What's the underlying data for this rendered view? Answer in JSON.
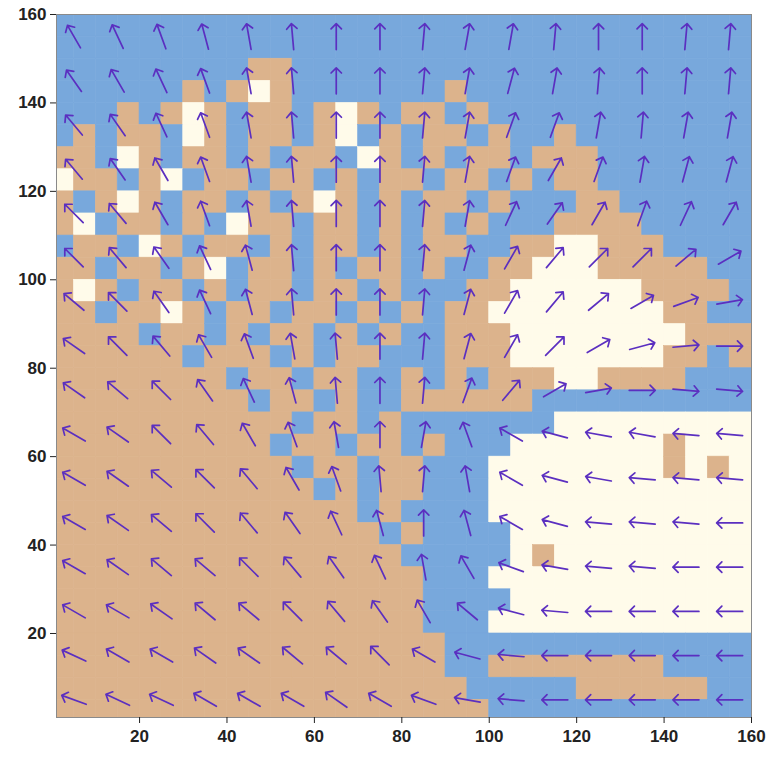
{
  "chart_data": {
    "type": "vector_field",
    "xlim": [
      1,
      160
    ],
    "ylim": [
      1,
      160
    ],
    "xticks": [
      20,
      40,
      60,
      80,
      100,
      120,
      140,
      160
    ],
    "yticks": [
      20,
      40,
      60,
      80,
      100,
      120,
      140,
      160
    ],
    "cells": {
      "x_start": 0,
      "y_top": 160,
      "size": 5,
      "colors": [
        "#78a8dc",
        "#dcb38c",
        "#fffbea"
      ],
      "rows": [
        [
          0,
          0,
          0,
          0,
          0,
          0,
          0,
          0,
          0,
          0,
          0,
          0,
          0,
          0,
          0,
          0,
          0,
          0,
          0,
          0,
          0,
          0,
          0,
          0,
          0,
          0,
          0,
          0,
          0,
          0,
          0,
          0
        ],
        [
          0,
          0,
          0,
          0,
          0,
          0,
          0,
          0,
          0,
          0,
          0,
          0,
          0,
          0,
          0,
          0,
          0,
          0,
          0,
          0,
          0,
          0,
          0,
          0,
          0,
          0,
          0,
          0,
          0,
          0,
          0,
          0
        ],
        [
          0,
          0,
          0,
          0,
          0,
          0,
          0,
          0,
          0,
          1,
          1,
          0,
          0,
          0,
          0,
          0,
          0,
          0,
          0,
          0,
          0,
          0,
          0,
          0,
          0,
          0,
          0,
          0,
          0,
          0,
          0,
          0
        ],
        [
          0,
          0,
          0,
          0,
          0,
          0,
          1,
          0,
          1,
          2,
          1,
          0,
          0,
          0,
          0,
          0,
          0,
          0,
          1,
          0,
          0,
          0,
          0,
          0,
          0,
          0,
          0,
          0,
          0,
          0,
          0,
          0
        ],
        [
          0,
          0,
          0,
          1,
          0,
          1,
          2,
          1,
          0,
          1,
          1,
          0,
          1,
          2,
          1,
          0,
          1,
          1,
          0,
          1,
          0,
          0,
          0,
          0,
          0,
          0,
          0,
          0,
          0,
          0,
          0,
          0
        ],
        [
          0,
          1,
          0,
          1,
          1,
          0,
          2,
          1,
          0,
          1,
          1,
          0,
          1,
          2,
          0,
          1,
          0,
          1,
          1,
          0,
          1,
          0,
          0,
          1,
          0,
          0,
          0,
          0,
          0,
          0,
          0,
          0
        ],
        [
          1,
          1,
          0,
          2,
          1,
          0,
          1,
          1,
          0,
          1,
          0,
          1,
          1,
          0,
          2,
          1,
          0,
          1,
          0,
          1,
          1,
          0,
          1,
          1,
          1,
          0,
          0,
          0,
          0,
          0,
          0,
          0
        ],
        [
          2,
          1,
          1,
          0,
          1,
          2,
          0,
          1,
          1,
          0,
          1,
          1,
          0,
          1,
          0,
          1,
          1,
          0,
          1,
          1,
          0,
          1,
          0,
          1,
          1,
          0,
          0,
          0,
          0,
          0,
          0,
          0
        ],
        [
          1,
          0,
          1,
          2,
          1,
          0,
          1,
          1,
          0,
          1,
          0,
          1,
          2,
          1,
          0,
          1,
          0,
          1,
          1,
          0,
          1,
          0,
          0,
          0,
          1,
          1,
          0,
          0,
          0,
          0,
          0,
          0
        ],
        [
          1,
          2,
          0,
          1,
          1,
          0,
          1,
          0,
          2,
          1,
          1,
          0,
          1,
          1,
          0,
          1,
          0,
          1,
          0,
          1,
          0,
          0,
          0,
          1,
          1,
          1,
          1,
          0,
          0,
          0,
          0,
          0
        ],
        [
          0,
          1,
          1,
          0,
          2,
          1,
          0,
          1,
          1,
          0,
          1,
          0,
          1,
          1,
          0,
          1,
          0,
          1,
          1,
          0,
          0,
          1,
          1,
          2,
          2,
          1,
          1,
          1,
          0,
          0,
          0,
          0
        ],
        [
          1,
          1,
          0,
          1,
          1,
          0,
          1,
          2,
          0,
          1,
          1,
          0,
          1,
          0,
          1,
          1,
          0,
          1,
          0,
          0,
          1,
          1,
          2,
          2,
          2,
          1,
          1,
          1,
          1,
          1,
          0,
          0
        ],
        [
          1,
          2,
          1,
          0,
          1,
          1,
          0,
          1,
          0,
          1,
          1,
          0,
          1,
          1,
          0,
          1,
          0,
          0,
          0,
          1,
          1,
          2,
          2,
          2,
          2,
          2,
          2,
          1,
          1,
          1,
          1,
          0
        ],
        [
          1,
          1,
          0,
          1,
          1,
          2,
          1,
          0,
          1,
          1,
          0,
          1,
          1,
          0,
          1,
          0,
          1,
          0,
          1,
          1,
          2,
          2,
          2,
          2,
          2,
          2,
          2,
          2,
          1,
          1,
          0,
          0
        ],
        [
          1,
          1,
          1,
          1,
          0,
          1,
          1,
          0,
          1,
          0,
          1,
          1,
          0,
          1,
          0,
          1,
          0,
          0,
          1,
          1,
          1,
          2,
          2,
          2,
          2,
          2,
          2,
          2,
          2,
          1,
          1,
          1
        ],
        [
          1,
          1,
          1,
          1,
          1,
          1,
          0,
          1,
          1,
          1,
          0,
          1,
          0,
          1,
          1,
          0,
          0,
          0,
          1,
          1,
          1,
          2,
          2,
          2,
          2,
          2,
          2,
          2,
          1,
          1,
          0,
          1
        ],
        [
          1,
          1,
          1,
          1,
          1,
          1,
          1,
          1,
          0,
          1,
          1,
          0,
          1,
          1,
          0,
          0,
          1,
          0,
          1,
          0,
          1,
          1,
          1,
          2,
          2,
          1,
          1,
          1,
          1,
          0,
          0,
          0
        ],
        [
          1,
          1,
          1,
          1,
          1,
          1,
          1,
          1,
          1,
          0,
          1,
          1,
          0,
          1,
          0,
          0,
          1,
          1,
          1,
          1,
          1,
          1,
          0,
          0,
          0,
          0,
          0,
          0,
          0,
          0,
          0,
          0
        ],
        [
          1,
          1,
          1,
          1,
          1,
          1,
          1,
          1,
          1,
          1,
          1,
          0,
          1,
          1,
          0,
          1,
          0,
          0,
          0,
          0,
          0,
          0,
          0,
          2,
          2,
          2,
          2,
          2,
          2,
          2,
          2,
          2
        ],
        [
          1,
          1,
          1,
          1,
          1,
          1,
          1,
          1,
          1,
          1,
          0,
          1,
          1,
          0,
          1,
          1,
          0,
          1,
          0,
          0,
          0,
          2,
          2,
          2,
          2,
          2,
          2,
          2,
          1,
          2,
          2,
          2
        ],
        [
          1,
          1,
          1,
          1,
          1,
          1,
          1,
          1,
          1,
          1,
          1,
          0,
          1,
          1,
          0,
          1,
          1,
          0,
          0,
          0,
          2,
          2,
          2,
          2,
          2,
          2,
          2,
          2,
          1,
          2,
          1,
          2
        ],
        [
          1,
          1,
          1,
          1,
          1,
          1,
          1,
          1,
          1,
          1,
          1,
          1,
          0,
          1,
          0,
          1,
          1,
          0,
          0,
          0,
          2,
          2,
          2,
          2,
          2,
          2,
          2,
          2,
          2,
          2,
          2,
          2
        ],
        [
          1,
          1,
          1,
          1,
          1,
          1,
          1,
          1,
          1,
          1,
          1,
          1,
          1,
          1,
          0,
          1,
          0,
          0,
          0,
          0,
          2,
          2,
          2,
          2,
          2,
          2,
          2,
          2,
          2,
          2,
          2,
          2
        ],
        [
          1,
          1,
          1,
          1,
          1,
          1,
          1,
          1,
          1,
          1,
          1,
          1,
          1,
          1,
          1,
          0,
          1,
          0,
          0,
          0,
          0,
          2,
          2,
          2,
          2,
          2,
          2,
          2,
          2,
          2,
          2,
          2
        ],
        [
          1,
          1,
          1,
          1,
          1,
          1,
          1,
          1,
          1,
          1,
          1,
          1,
          1,
          1,
          1,
          1,
          0,
          0,
          0,
          0,
          0,
          2,
          1,
          2,
          2,
          2,
          2,
          2,
          2,
          2,
          2,
          2
        ],
        [
          1,
          1,
          1,
          1,
          1,
          1,
          1,
          1,
          1,
          1,
          1,
          1,
          1,
          1,
          1,
          1,
          1,
          0,
          0,
          0,
          2,
          2,
          2,
          2,
          2,
          2,
          2,
          2,
          2,
          2,
          2,
          2
        ],
        [
          1,
          1,
          1,
          1,
          1,
          1,
          1,
          1,
          1,
          1,
          1,
          1,
          1,
          1,
          1,
          1,
          1,
          0,
          0,
          0,
          0,
          2,
          2,
          2,
          2,
          2,
          2,
          2,
          2,
          2,
          2,
          2
        ],
        [
          1,
          1,
          1,
          1,
          1,
          1,
          1,
          1,
          1,
          1,
          1,
          1,
          1,
          1,
          1,
          1,
          1,
          0,
          0,
          0,
          2,
          2,
          2,
          2,
          2,
          2,
          2,
          2,
          2,
          2,
          2,
          2
        ],
        [
          1,
          1,
          1,
          1,
          1,
          1,
          1,
          1,
          1,
          1,
          1,
          1,
          1,
          1,
          1,
          1,
          1,
          1,
          0,
          0,
          0,
          0,
          0,
          0,
          0,
          0,
          0,
          0,
          0,
          0,
          0,
          0
        ],
        [
          1,
          1,
          1,
          1,
          1,
          1,
          1,
          1,
          1,
          1,
          1,
          1,
          1,
          1,
          1,
          1,
          1,
          1,
          0,
          0,
          1,
          1,
          1,
          1,
          1,
          1,
          1,
          1,
          0,
          0,
          0,
          0
        ],
        [
          1,
          1,
          1,
          1,
          1,
          1,
          1,
          1,
          1,
          1,
          1,
          1,
          1,
          1,
          1,
          1,
          1,
          1,
          1,
          0,
          0,
          0,
          0,
          0,
          1,
          1,
          1,
          1,
          1,
          1,
          0,
          0
        ],
        [
          1,
          1,
          1,
          1,
          1,
          1,
          1,
          1,
          1,
          1,
          1,
          1,
          1,
          1,
          1,
          1,
          1,
          1,
          1,
          1,
          0,
          0,
          0,
          0,
          0,
          0,
          0,
          0,
          0,
          0,
          0,
          0
        ]
      ]
    },
    "vectors": {
      "color": "#5b2fc0",
      "x": [
        5,
        15,
        25,
        35,
        45,
        55,
        65,
        75,
        85,
        95,
        105,
        115,
        125,
        135,
        145,
        155
      ],
      "y": [
        155,
        145,
        135,
        125,
        115,
        105,
        95,
        85,
        75,
        65,
        55,
        45,
        35,
        25,
        15,
        5
      ],
      "direction_deg": [
        [
          330,
          335,
          340,
          345,
          350,
          355,
          0,
          0,
          5,
          10,
          10,
          5,
          0,
          0,
          5,
          5
        ],
        [
          325,
          330,
          335,
          340,
          350,
          355,
          0,
          0,
          5,
          10,
          15,
          10,
          5,
          0,
          5,
          5
        ],
        [
          320,
          325,
          335,
          340,
          350,
          355,
          0,
          0,
          5,
          10,
          20,
          20,
          10,
          5,
          10,
          10
        ],
        [
          320,
          325,
          330,
          340,
          350,
          355,
          0,
          0,
          5,
          10,
          20,
          30,
          20,
          10,
          15,
          15
        ],
        [
          315,
          320,
          330,
          340,
          350,
          355,
          0,
          0,
          5,
          10,
          25,
          35,
          30,
          20,
          25,
          30
        ],
        [
          315,
          320,
          325,
          335,
          345,
          355,
          0,
          0,
          5,
          15,
          30,
          40,
          45,
          45,
          50,
          60
        ],
        [
          310,
          315,
          325,
          335,
          345,
          355,
          0,
          0,
          5,
          15,
          30,
          40,
          50,
          60,
          70,
          80
        ],
        [
          305,
          315,
          320,
          330,
          340,
          350,
          355,
          0,
          5,
          15,
          30,
          45,
          60,
          75,
          85,
          90
        ],
        [
          305,
          310,
          315,
          325,
          335,
          345,
          355,
          0,
          5,
          20,
          40,
          60,
          80,
          90,
          95,
          95
        ],
        [
          300,
          305,
          315,
          320,
          330,
          340,
          350,
          0,
          10,
          340,
          300,
          285,
          280,
          280,
          275,
          275
        ],
        [
          300,
          305,
          310,
          315,
          320,
          330,
          340,
          355,
          5,
          350,
          300,
          285,
          280,
          275,
          275,
          275
        ],
        [
          300,
          305,
          310,
          315,
          320,
          325,
          335,
          345,
          0,
          345,
          300,
          285,
          275,
          275,
          275,
          270
        ],
        [
          300,
          305,
          310,
          310,
          315,
          320,
          325,
          335,
          350,
          330,
          290,
          280,
          275,
          275,
          270,
          270
        ],
        [
          300,
          300,
          305,
          310,
          310,
          315,
          320,
          325,
          330,
          310,
          285,
          275,
          270,
          270,
          270,
          270
        ],
        [
          295,
          300,
          300,
          305,
          305,
          310,
          310,
          315,
          300,
          285,
          275,
          270,
          270,
          270,
          270,
          270
        ],
        [
          290,
          295,
          295,
          300,
          300,
          300,
          305,
          300,
          290,
          280,
          275,
          270,
          270,
          270,
          270,
          270
        ]
      ]
    }
  }
}
